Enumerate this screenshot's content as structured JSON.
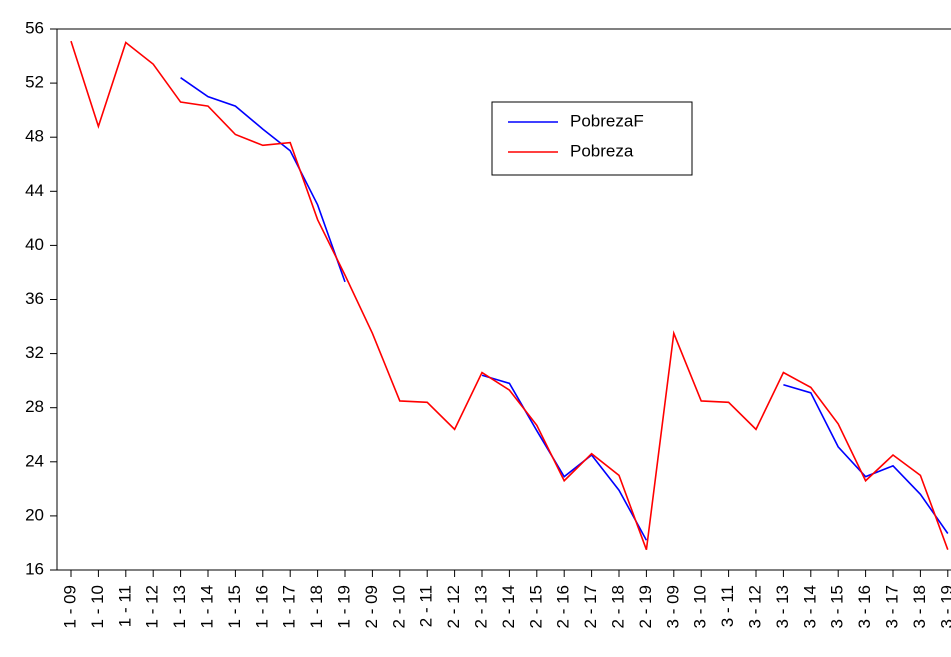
{
  "chart_data": {
    "type": "line",
    "categories": [
      "1 - 09",
      "1 - 10",
      "1 - 11",
      "1 - 12",
      "1 - 13",
      "1 - 14",
      "1 - 15",
      "1 - 16",
      "1 - 17",
      "1 - 18",
      "1 - 19",
      "2 - 09",
      "2 - 10",
      "2 - 11",
      "2 - 12",
      "2 - 13",
      "2 - 14",
      "2 - 15",
      "2 - 16",
      "2 - 17",
      "2 - 18",
      "2 - 19",
      "3 - 09",
      "3 - 10",
      "3 - 11",
      "3 - 12",
      "3 - 13",
      "3 - 14",
      "3 - 15",
      "3 - 16",
      "3 - 17",
      "3 - 18",
      "3 - 19"
    ],
    "series": [
      {
        "name": "PobrezaF",
        "color": "#0000ff",
        "values": [
          null,
          null,
          null,
          null,
          52.4,
          51.0,
          50.3,
          48.6,
          47.0,
          43.0,
          37.3,
          null,
          null,
          null,
          null,
          30.4,
          29.8,
          26.3,
          22.9,
          24.5,
          21.9,
          18.2,
          null,
          null,
          null,
          null,
          29.7,
          29.1,
          25.1,
          22.9,
          23.7,
          21.6,
          18.7
        ]
      },
      {
        "name": "Pobreza",
        "color": "#ff0000",
        "values": [
          55.1,
          48.8,
          55.0,
          53.4,
          50.6,
          50.3,
          48.2,
          47.4,
          47.6,
          41.9,
          37.8,
          33.5,
          28.5,
          28.4,
          26.4,
          30.6,
          29.3,
          26.7,
          22.6,
          24.6,
          23.0,
          17.5,
          33.5,
          28.5,
          28.4,
          26.4,
          30.6,
          29.5,
          26.8,
          22.6,
          24.5,
          23.0,
          17.5
        ]
      }
    ],
    "ylim": [
      16,
      56
    ],
    "yticks": [
      16,
      20,
      24,
      28,
      32,
      36,
      40,
      44,
      48,
      52,
      56
    ]
  }
}
